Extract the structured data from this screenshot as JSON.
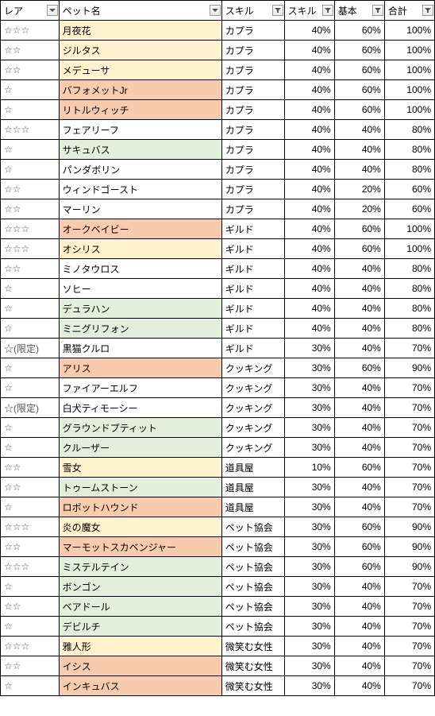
{
  "headers": {
    "rare": "レア",
    "name": "ペット名",
    "skill": "スキル",
    "skillv": "スキル",
    "base": "基本",
    "total": "合計"
  },
  "colors": {
    "yellow": "#fff2cc",
    "green": "#e2efda",
    "orange": "#f8cbad"
  },
  "rows": [
    {
      "rare": "☆☆☆",
      "name": "月夜花",
      "nameBg": "yellow",
      "skill": "カプラ",
      "skillv": "40%",
      "base": "60%",
      "total": "100%"
    },
    {
      "rare": "☆☆",
      "name": "ジルタス",
      "nameBg": "yellow",
      "skill": "カプラ",
      "skillv": "40%",
      "base": "60%",
      "total": "100%"
    },
    {
      "rare": "☆☆",
      "name": "メデューサ",
      "nameBg": "yellow",
      "skill": "カプラ",
      "skillv": "40%",
      "base": "60%",
      "total": "100%"
    },
    {
      "rare": "☆",
      "name": "バフォメットJr",
      "nameBg": "orange",
      "skill": "カプラ",
      "skillv": "40%",
      "base": "60%",
      "total": "100%"
    },
    {
      "rare": "☆",
      "name": "リトルウィッチ",
      "nameBg": "orange",
      "skill": "カプラ",
      "skillv": "40%",
      "base": "60%",
      "total": "100%"
    },
    {
      "rare": "☆☆☆",
      "name": "フェアリーフ",
      "nameBg": "",
      "skill": "カプラ",
      "skillv": "40%",
      "base": "40%",
      "total": "80%"
    },
    {
      "rare": "☆",
      "name": "サキュバス",
      "nameBg": "green",
      "skill": "カプラ",
      "skillv": "40%",
      "base": "40%",
      "total": "80%"
    },
    {
      "rare": "☆",
      "name": "パンダボリン",
      "nameBg": "",
      "skill": "カプラ",
      "skillv": "40%",
      "base": "40%",
      "total": "80%"
    },
    {
      "rare": "☆☆",
      "name": "ウィンドゴースト",
      "nameBg": "",
      "skill": "カプラ",
      "skillv": "40%",
      "base": "20%",
      "total": "60%"
    },
    {
      "rare": "☆☆",
      "name": "マーリン",
      "nameBg": "",
      "skill": "カプラ",
      "skillv": "40%",
      "base": "20%",
      "total": "60%"
    },
    {
      "rare": "☆☆☆",
      "name": "オークベイビー",
      "nameBg": "orange",
      "skill": "ギルド",
      "skillv": "40%",
      "base": "60%",
      "total": "100%"
    },
    {
      "rare": "☆☆☆",
      "name": "オシリス",
      "nameBg": "yellow",
      "skill": "ギルド",
      "skillv": "40%",
      "base": "60%",
      "total": "100%"
    },
    {
      "rare": "☆☆",
      "name": "ミノタウロス",
      "nameBg": "",
      "skill": "ギルド",
      "skillv": "40%",
      "base": "40%",
      "total": "80%"
    },
    {
      "rare": "☆",
      "name": "ソヒー",
      "nameBg": "",
      "skill": "ギルド",
      "skillv": "40%",
      "base": "40%",
      "total": "80%"
    },
    {
      "rare": "☆",
      "name": "デュラハン",
      "nameBg": "green",
      "skill": "ギルド",
      "skillv": "40%",
      "base": "40%",
      "total": "80%"
    },
    {
      "rare": "☆",
      "name": "ミニグリフォン",
      "nameBg": "green",
      "skill": "ギルド",
      "skillv": "40%",
      "base": "40%",
      "total": "80%"
    },
    {
      "rare": "☆(限定)",
      "name": "黒猫クルロ",
      "nameBg": "",
      "skill": "ギルド",
      "skillv": "30%",
      "base": "40%",
      "total": "70%"
    },
    {
      "rare": "☆",
      "name": "アリス",
      "nameBg": "orange",
      "skill": "クッキング",
      "skillv": "30%",
      "base": "60%",
      "total": "90%"
    },
    {
      "rare": "☆",
      "name": "ファイアーエルフ",
      "nameBg": "",
      "skill": "クッキング",
      "skillv": "30%",
      "base": "40%",
      "total": "70%"
    },
    {
      "rare": "☆(限定)",
      "name": "白犬ティモーシー",
      "nameBg": "",
      "skill": "クッキング",
      "skillv": "30%",
      "base": "40%",
      "total": "70%"
    },
    {
      "rare": "☆",
      "name": "グラウンドプティット",
      "nameBg": "green",
      "skill": "クッキング",
      "skillv": "30%",
      "base": "40%",
      "total": "70%"
    },
    {
      "rare": "☆",
      "name": "クルーザー",
      "nameBg": "green",
      "skill": "クッキング",
      "skillv": "30%",
      "base": "40%",
      "total": "70%"
    },
    {
      "rare": "☆☆",
      "name": "雪女",
      "nameBg": "yellow",
      "skill": "道具屋",
      "skillv": "10%",
      "base": "60%",
      "total": "70%"
    },
    {
      "rare": "☆☆",
      "name": "トゥームストーン",
      "nameBg": "green",
      "skill": "道具屋",
      "skillv": "30%",
      "base": "40%",
      "total": "70%"
    },
    {
      "rare": "☆",
      "name": "ロボットハウンド",
      "nameBg": "orange",
      "skill": "道具屋",
      "skillv": "30%",
      "base": "40%",
      "total": "70%"
    },
    {
      "rare": "☆☆☆",
      "name": "炎の魔女",
      "nameBg": "yellow",
      "skill": "ペット協会",
      "skillv": "30%",
      "base": "60%",
      "total": "90%"
    },
    {
      "rare": "☆☆",
      "name": "マーモットスカベンジャー",
      "nameBg": "orange",
      "skill": "ペット協会",
      "skillv": "30%",
      "base": "60%",
      "total": "90%"
    },
    {
      "rare": "☆☆☆",
      "name": "ミステルテイン",
      "nameBg": "green",
      "skill": "ペット協会",
      "skillv": "30%",
      "base": "60%",
      "total": "90%"
    },
    {
      "rare": "☆",
      "name": "ボンゴン",
      "nameBg": "green",
      "skill": "ペット協会",
      "skillv": "30%",
      "base": "40%",
      "total": "70%"
    },
    {
      "rare": "☆☆",
      "name": "ベアドール",
      "nameBg": "green",
      "skill": "ペット協会",
      "skillv": "30%",
      "base": "40%",
      "total": "70%"
    },
    {
      "rare": "☆",
      "name": "デビルチ",
      "nameBg": "green",
      "skill": "ペット協会",
      "skillv": "30%",
      "base": "40%",
      "total": "70%"
    },
    {
      "rare": "☆☆☆",
      "name": "雅人形",
      "nameBg": "yellow",
      "skill": "微笑む女性",
      "skillv": "30%",
      "base": "40%",
      "total": "70%"
    },
    {
      "rare": "☆☆",
      "name": "イシス",
      "nameBg": "orange",
      "skill": "微笑む女性",
      "skillv": "30%",
      "base": "40%",
      "total": "70%"
    },
    {
      "rare": "☆",
      "name": "インキュバス",
      "nameBg": "orange",
      "skill": "微笑む女性",
      "skillv": "30%",
      "base": "40%",
      "total": "70%"
    }
  ]
}
